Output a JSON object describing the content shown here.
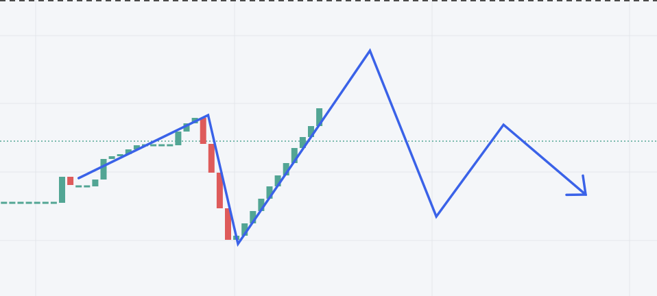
{
  "chart_data": {
    "type": "candlestick",
    "title": "",
    "xlabel": "",
    "ylabel": "",
    "grid": true,
    "colors": {
      "background": "#f4f6f9",
      "grid": "#e3e6eb",
      "up": "#52a594",
      "down": "#de5b5b",
      "drawing": "#3a62e8",
      "price_line": "#52a594",
      "top_border": "#4a4a4a"
    },
    "price_line": 147,
    "candles": [
      {
        "o": 102,
        "c": 102
      },
      {
        "o": 102,
        "c": 102
      },
      {
        "o": 102,
        "c": 102
      },
      {
        "o": 102,
        "c": 102
      },
      {
        "o": 102,
        "c": 102
      },
      {
        "o": 102,
        "c": 102
      },
      {
        "o": 102,
        "c": 102
      },
      {
        "o": 102,
        "c": 121
      },
      {
        "o": 121,
        "c": 115
      },
      {
        "o": 114,
        "c": 114
      },
      {
        "o": 114,
        "c": 114
      },
      {
        "o": 114,
        "c": 119
      },
      {
        "o": 119,
        "c": 134
      },
      {
        "o": 134,
        "c": 136
      },
      {
        "o": 136,
        "c": 137.5
      },
      {
        "o": 137.5,
        "c": 141
      },
      {
        "o": 141,
        "c": 144
      },
      {
        "o": 144,
        "c": 144
      },
      {
        "o": 144,
        "c": 144
      },
      {
        "o": 144,
        "c": 144
      },
      {
        "o": 144,
        "c": 144
      },
      {
        "o": 144,
        "c": 154
      },
      {
        "o": 154,
        "c": 160
      },
      {
        "o": 160,
        "c": 164
      },
      {
        "o": 164,
        "c": 145
      },
      {
        "o": 145,
        "c": 124
      },
      {
        "o": 124,
        "c": 98
      },
      {
        "o": 98,
        "c": 75
      },
      {
        "o": 75,
        "c": 78
      },
      {
        "o": 78,
        "c": 87
      },
      {
        "o": 87,
        "c": 96
      },
      {
        "o": 96,
        "c": 105
      },
      {
        "o": 105,
        "c": 114
      },
      {
        "o": 114,
        "c": 122
      },
      {
        "o": 122,
        "c": 131
      },
      {
        "o": 131,
        "c": 142
      },
      {
        "o": 142,
        "c": 150
      },
      {
        "o": 150,
        "c": 158
      },
      {
        "o": 158,
        "c": 171
      }
    ],
    "drawing": {
      "type": "zigzag-arrow",
      "points": [
        {
          "bar": 9,
          "y": 120
        },
        {
          "bar": 24.6,
          "y": 166
        },
        {
          "bar": 28.2,
          "y": 72
        },
        {
          "bar": 44.1,
          "y": 213
        },
        {
          "bar": 52.1,
          "y": 92
        },
        {
          "bar": 60.2,
          "y": 159
        },
        {
          "bar": 70.1,
          "y": 108
        },
        {
          "bar": 72.1,
          "y": 116
        }
      ]
    }
  }
}
